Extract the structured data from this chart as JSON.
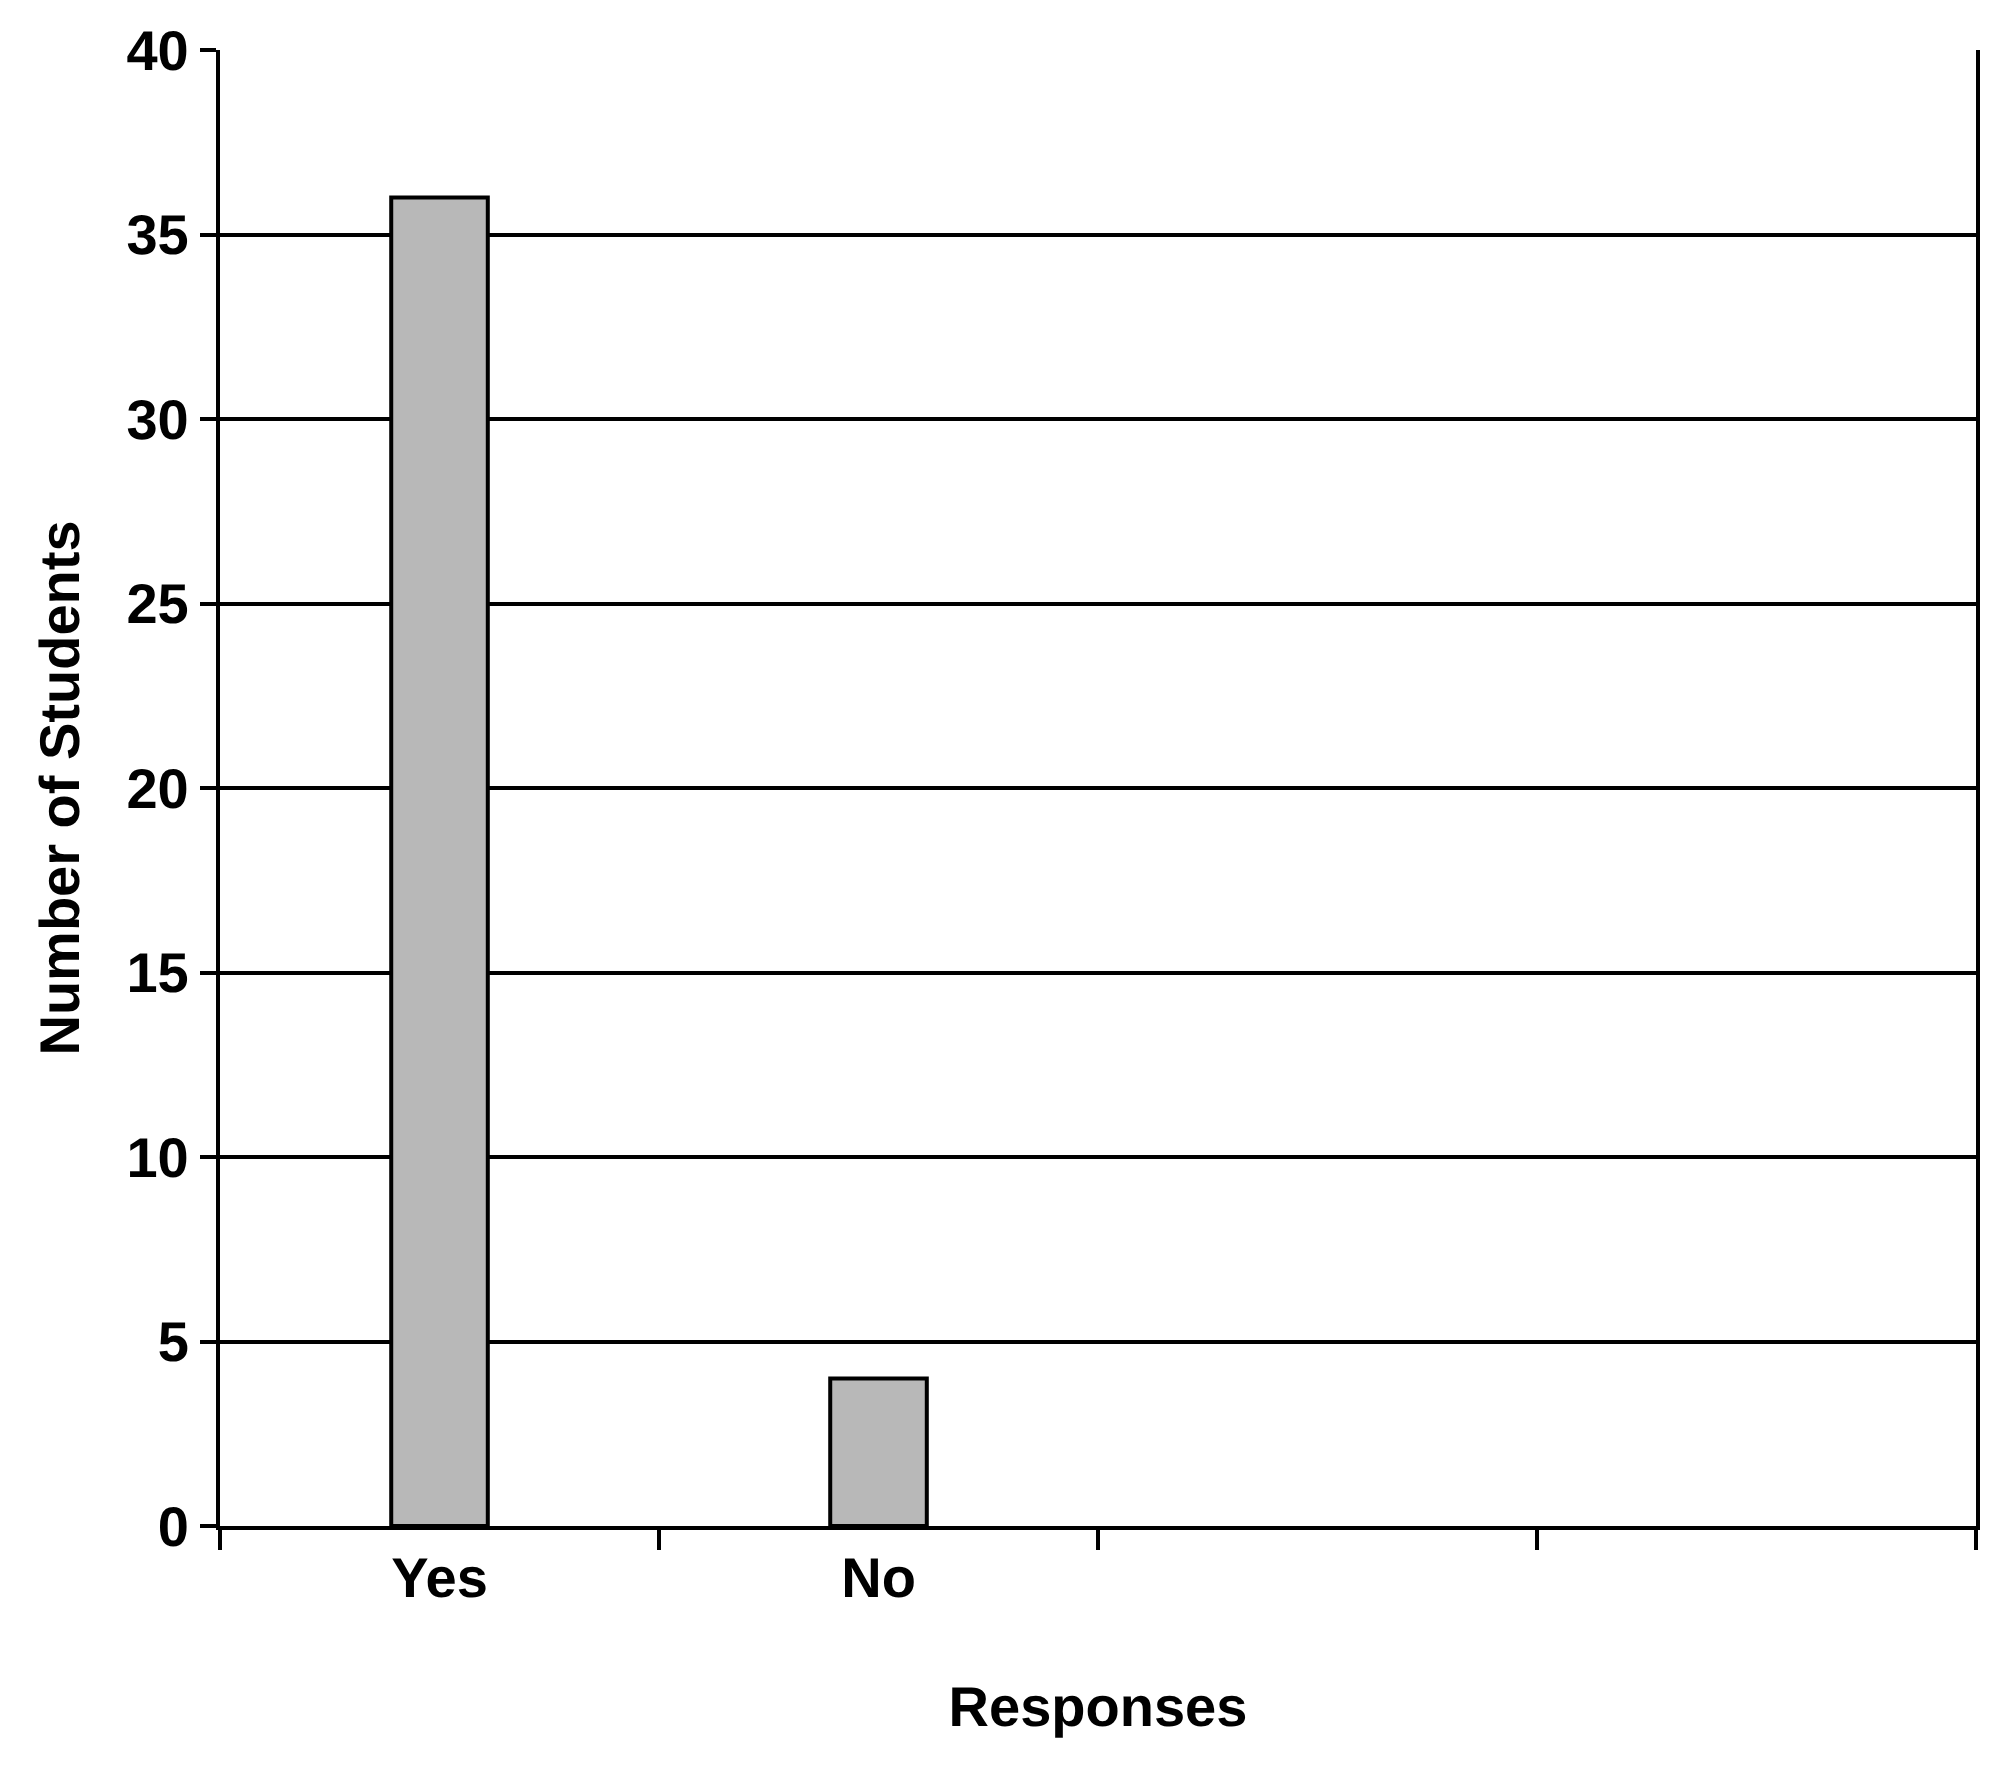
{
  "chart_data": {
    "type": "bar",
    "xlabel": "Responses",
    "ylabel": "Number of Students",
    "categories": [
      "Yes",
      "No",
      null,
      null
    ],
    "values": [
      36,
      4,
      null,
      null
    ],
    "color": "#b8b8b8",
    "ylim": [
      0,
      40
    ],
    "yticks": [
      0,
      5,
      10,
      15,
      20,
      25,
      30,
      35,
      40
    ],
    "grid": "y",
    "legend": false
  }
}
